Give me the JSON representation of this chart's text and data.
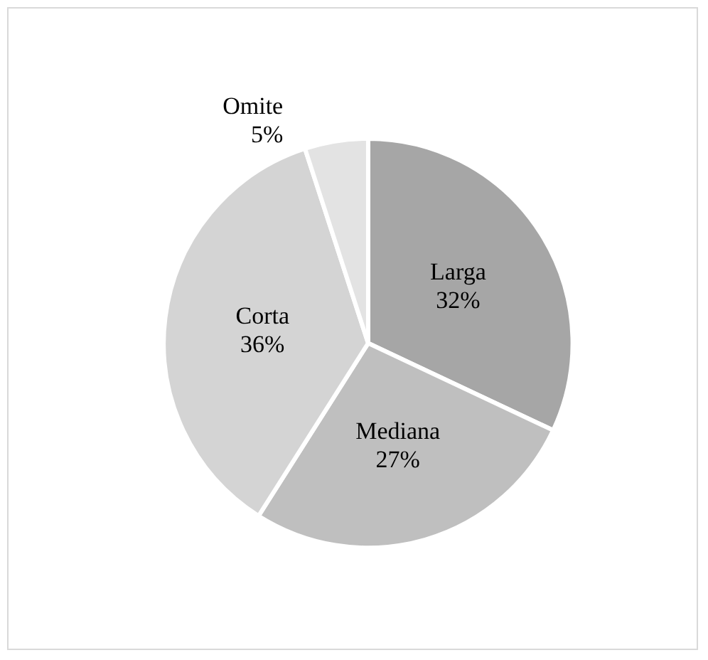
{
  "chart_data": {
    "type": "pie",
    "categories": [
      "Larga",
      "Mediana",
      "Corta",
      "Omite"
    ],
    "values": [
      32,
      27,
      36,
      5
    ],
    "colors": [
      "#a6a6a6",
      "#bfbfbf",
      "#d4d4d4",
      "#e3e3e3"
    ],
    "value_labels": [
      "32%",
      "27%",
      "36%",
      "5%"
    ]
  }
}
